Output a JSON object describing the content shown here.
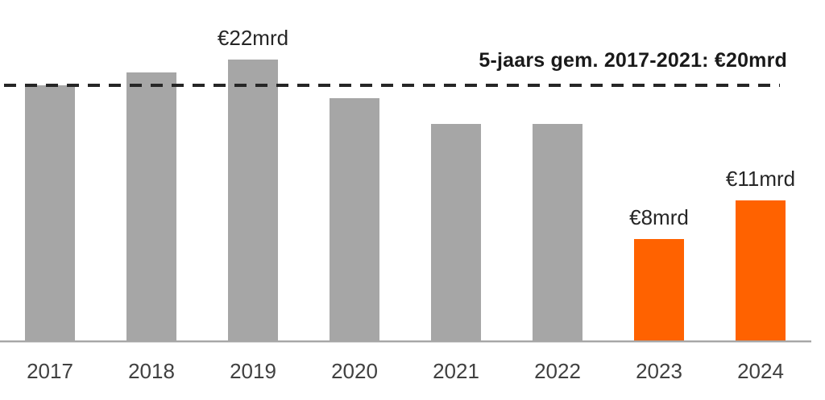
{
  "chart_data": {
    "type": "bar",
    "title": "",
    "categories": [
      "2017",
      "2018",
      "2019",
      "2020",
      "2021",
      "2022",
      "2023",
      "2024"
    ],
    "values": [
      20,
      21,
      22,
      19,
      17,
      17,
      8,
      11
    ],
    "unit": "mrd EUR",
    "bar_colors": [
      "#a6a6a6",
      "#a6a6a6",
      "#a6a6a6",
      "#a6a6a6",
      "#a6a6a6",
      "#a6a6a6",
      "#ff6200",
      "#ff6200"
    ],
    "data_labels": {
      "2019": "€22mrd",
      "2023": "€8mrd",
      "2024": "€11mrd"
    },
    "reference_line": {
      "value": 20,
      "label": "5-jaars gem. 2017-2021: €20mrd",
      "style": "dashed",
      "color": "#262626"
    },
    "ylim": [
      0,
      26.7
    ],
    "xlabel": "",
    "ylabel": "",
    "grid": false,
    "legend": false,
    "colors": {
      "bar_default": "#a6a6a6",
      "bar_highlight": "#ff6200",
      "axis": "#a6a6a6",
      "tick_label": "#404040",
      "data_label": "#262626",
      "annotation": "#1a1a1a"
    }
  }
}
